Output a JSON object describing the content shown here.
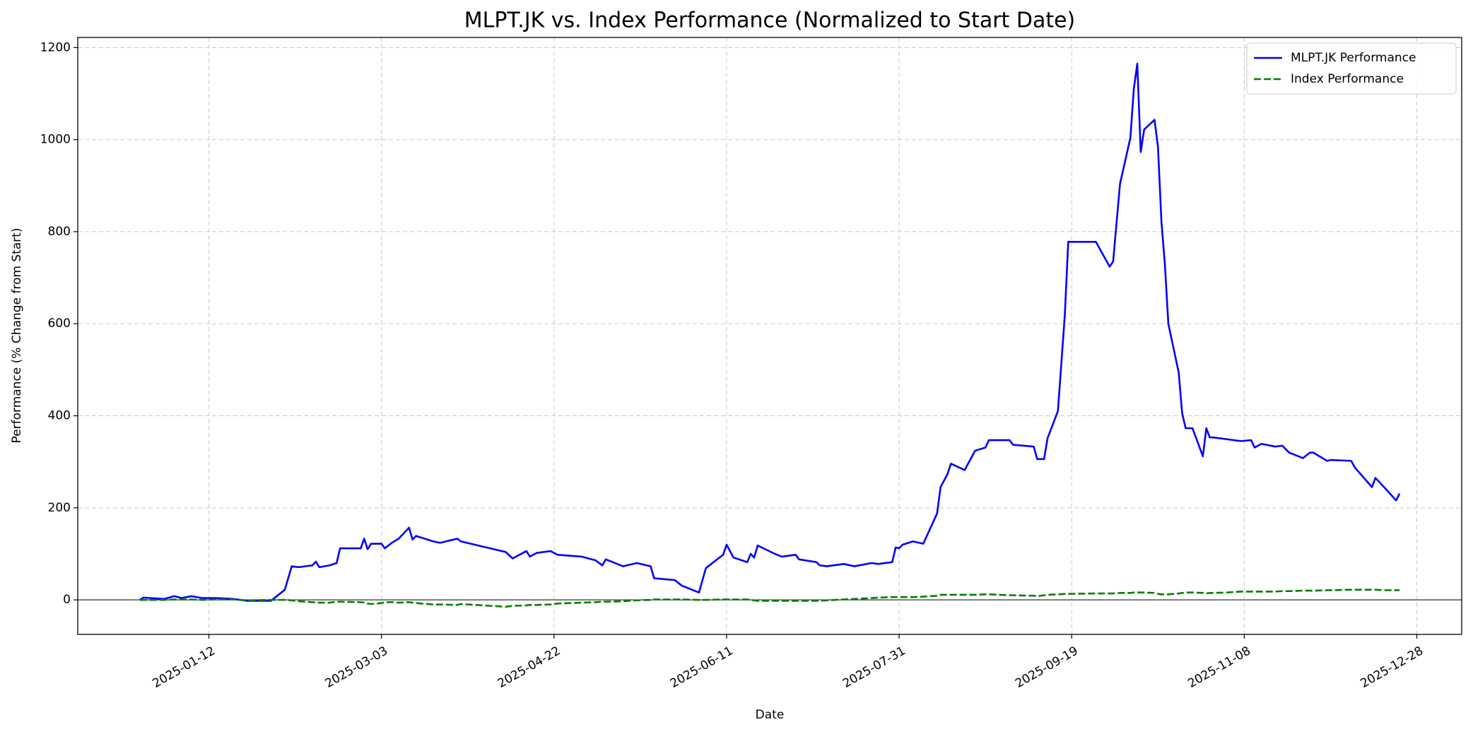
{
  "chart_data": {
    "type": "line",
    "title": "MLPT.JK vs. Index Performance (Normalized to Start Date)",
    "x_label": "Date",
    "y_label": "Performance (% Change from Start)",
    "x": [
      "2024-12-23",
      "2024-12-24",
      "2024-12-30",
      "2025-01-02",
      "2025-01-04",
      "2025-01-07",
      "2025-01-10",
      "2025-01-14",
      "2025-01-19",
      "2025-01-23",
      "2025-01-30",
      "2025-02-03",
      "2025-02-05",
      "2025-02-07",
      "2025-02-11",
      "2025-02-12",
      "2025-02-13",
      "2025-02-16",
      "2025-02-18",
      "2025-02-19",
      "2025-02-25",
      "2025-02-26",
      "2025-02-27",
      "2025-02-28",
      "2025-03-03",
      "2025-03-04",
      "2025-03-06",
      "2025-03-08",
      "2025-03-11",
      "2025-03-12",
      "2025-03-13",
      "2025-03-18",
      "2025-03-20",
      "2025-03-25",
      "2025-03-26",
      "2025-04-08",
      "2025-04-10",
      "2025-04-14",
      "2025-04-15",
      "2025-04-17",
      "2025-04-21",
      "2025-04-23",
      "2025-04-30",
      "2025-05-04",
      "2025-05-06",
      "2025-05-07",
      "2025-05-12",
      "2025-05-16",
      "2025-05-20",
      "2025-05-21",
      "2025-05-27",
      "2025-05-29",
      "2025-06-03",
      "2025-06-05",
      "2025-06-10",
      "2025-06-11",
      "2025-06-13",
      "2025-06-17",
      "2025-06-18",
      "2025-06-19",
      "2025-06-20",
      "2025-06-25",
      "2025-06-27",
      "2025-07-01",
      "2025-07-02",
      "2025-07-07",
      "2025-07-08",
      "2025-07-10",
      "2025-07-15",
      "2025-07-18",
      "2025-07-23",
      "2025-07-25",
      "2025-07-29",
      "2025-07-30",
      "2025-07-31",
      "2025-08-01",
      "2025-08-04",
      "2025-08-07",
      "2025-08-11",
      "2025-08-12",
      "2025-08-14",
      "2025-08-15",
      "2025-08-19",
      "2025-08-22",
      "2025-08-25",
      "2025-08-26",
      "2025-09-01",
      "2025-09-02",
      "2025-09-08",
      "2025-09-09",
      "2025-09-11",
      "2025-09-12",
      "2025-09-15",
      "2025-09-17",
      "2025-09-18",
      "2025-09-26",
      "2025-09-30",
      "2025-10-01",
      "2025-10-03",
      "2025-10-06",
      "2025-10-07",
      "2025-10-08",
      "2025-10-09",
      "2025-10-10",
      "2025-10-13",
      "2025-10-14",
      "2025-10-15",
      "2025-10-16",
      "2025-10-17",
      "2025-10-20",
      "2025-10-21",
      "2025-10-22",
      "2025-10-24",
      "2025-10-27",
      "2025-10-28",
      "2025-10-29",
      "2025-10-30",
      "2025-11-03",
      "2025-11-07",
      "2025-11-10",
      "2025-11-11",
      "2025-11-13",
      "2025-11-17",
      "2025-11-19",
      "2025-11-21",
      "2025-11-25",
      "2025-11-27",
      "2025-11-28",
      "2025-12-02",
      "2025-12-03",
      "2025-12-09",
      "2025-12-10",
      "2025-12-15",
      "2025-12-16",
      "2025-12-19",
      "2025-12-22",
      "2025-12-23"
    ],
    "series": [
      {
        "name": "MLPT.JK Performance",
        "color": "#0000ff",
        "style": "solid",
        "values": [
          0,
          5,
          2,
          8,
          4,
          8,
          4,
          4,
          2,
          -2,
          -2,
          22,
          73,
          71,
          75,
          83,
          71,
          75,
          80,
          112,
          112,
          133,
          110,
          122,
          122,
          112,
          124,
          133,
          157,
          131,
          139,
          127,
          124,
          133,
          127,
          104,
          90,
          106,
          94,
          102,
          106,
          98,
          94,
          86,
          75,
          88,
          73,
          80,
          73,
          47,
          43,
          31,
          16,
          69,
          98,
          120,
          92,
          82,
          100,
          92,
          118,
          100,
          94,
          98,
          88,
          82,
          75,
          73,
          78,
          73,
          80,
          78,
          82,
          114,
          112,
          120,
          127,
          122,
          188,
          245,
          273,
          296,
          282,
          324,
          331,
          347,
          347,
          337,
          333,
          306,
          306,
          351,
          410,
          618,
          778,
          778,
          724,
          735,
          904,
          1004,
          1110,
          1165,
          973,
          1022,
          1043,
          984,
          822,
          729,
          600,
          494,
          406,
          373,
          373,
          312,
          373,
          353,
          353,
          349,
          345,
          347,
          331,
          339,
          333,
          335,
          320,
          308,
          320,
          320,
          302,
          304,
          302,
          288,
          245,
          265,
          241,
          216,
          231
        ]
      },
      {
        "name": "Index Performance",
        "color": "#008000",
        "style": "dashed",
        "values": [
          0,
          0,
          0,
          1,
          1,
          1,
          0,
          1,
          1,
          -1,
          0,
          0,
          -1,
          -3,
          -5,
          -5,
          -6,
          -6,
          -4,
          -4,
          -5,
          -6,
          -8,
          -9,
          -7,
          -5,
          -5,
          -6,
          -5,
          -6,
          -7,
          -10,
          -10,
          -11,
          -9,
          -15,
          -13,
          -12,
          -11,
          -11,
          -10,
          -8,
          -6,
          -5,
          -4,
          -4,
          -3,
          -1,
          0,
          1,
          1,
          1,
          0,
          0,
          1,
          1,
          1,
          1,
          0,
          -1,
          -2,
          -2,
          -2,
          -2,
          -2,
          -2,
          -2,
          -1,
          1,
          2,
          4,
          5,
          6,
          6,
          6,
          6,
          6,
          7,
          9,
          11,
          11,
          11,
          11,
          11,
          12,
          12,
          10,
          10,
          9,
          8,
          10,
          11,
          12,
          13,
          13,
          14,
          14,
          14,
          15,
          15,
          16,
          16,
          16,
          16,
          15,
          13,
          12,
          12,
          12,
          14,
          15,
          16,
          16,
          15,
          14,
          15,
          15,
          16,
          18,
          18,
          18,
          18,
          18,
          19,
          19,
          20,
          20,
          20,
          21,
          21,
          22,
          22,
          22,
          22,
          21,
          21,
          21
        ]
      }
    ],
    "xlim": [
      "2024-12-05",
      "2026-01-10"
    ],
    "xticks": [
      "2025-01-12",
      "2025-03-03",
      "2025-04-22",
      "2025-06-11",
      "2025-07-31",
      "2025-09-19",
      "2025-11-08",
      "2025-12-28"
    ],
    "ylim": [
      -75,
      1222
    ],
    "yticks": [
      0,
      200,
      400,
      600,
      800,
      1000,
      1200
    ],
    "hline": 0,
    "grid": true,
    "legend": "upper right"
  }
}
